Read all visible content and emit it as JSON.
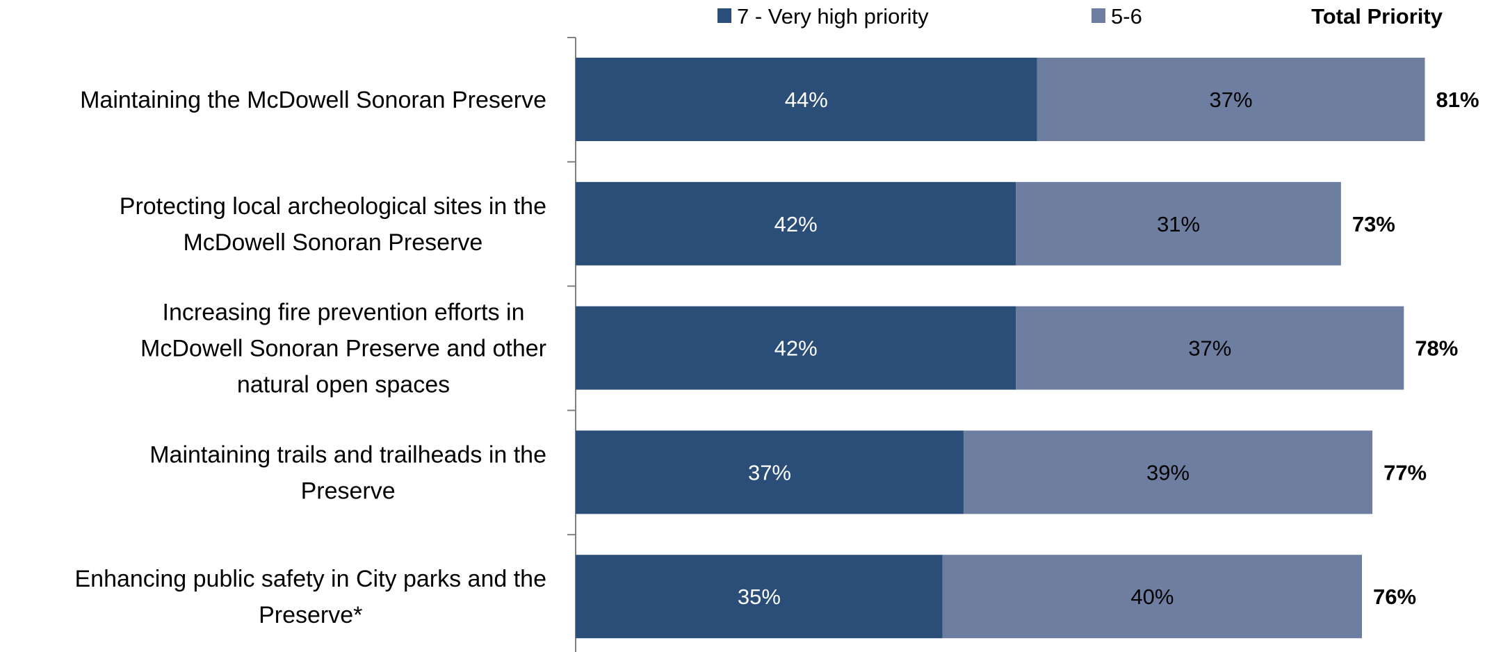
{
  "chart_data": {
    "type": "bar",
    "orientation": "horizontal",
    "stacked": true,
    "categories": [
      [
        "Maintaining the McDowell Sonoran Preserve"
      ],
      [
        "Protecting local archeological sites in the",
        "McDowell Sonoran Preserve"
      ],
      [
        "Increasing fire prevention efforts in",
        "McDowell Sonoran Preserve and other",
        "natural open spaces"
      ],
      [
        "Maintaining trails and trailheads in the",
        "Preserve"
      ],
      [
        "Enhancing public safety in City parks and the",
        "Preserve*"
      ]
    ],
    "series": [
      {
        "name": "7 - Very high priority",
        "color": "#2a4e78",
        "label_color": "#ffffff",
        "values": [
          44,
          42,
          42,
          37,
          35
        ],
        "labels": [
          "44%",
          "42%",
          "42%",
          "37%",
          "35%"
        ]
      },
      {
        "name": "5-6",
        "color": "#6e7ea0",
        "label_color": "#000000",
        "values": [
          37,
          31,
          37,
          39,
          40
        ],
        "labels": [
          "37%",
          "31%",
          "37%",
          "39%",
          "40%"
        ]
      }
    ],
    "totals": {
      "name": "Total Priority",
      "values": [
        81,
        73,
        78,
        77,
        76
      ],
      "labels": [
        "81%",
        "73%",
        "78%",
        "77%",
        "76%"
      ]
    },
    "xlim": [
      0,
      100
    ],
    "grid": false,
    "legend_position": "top"
  }
}
